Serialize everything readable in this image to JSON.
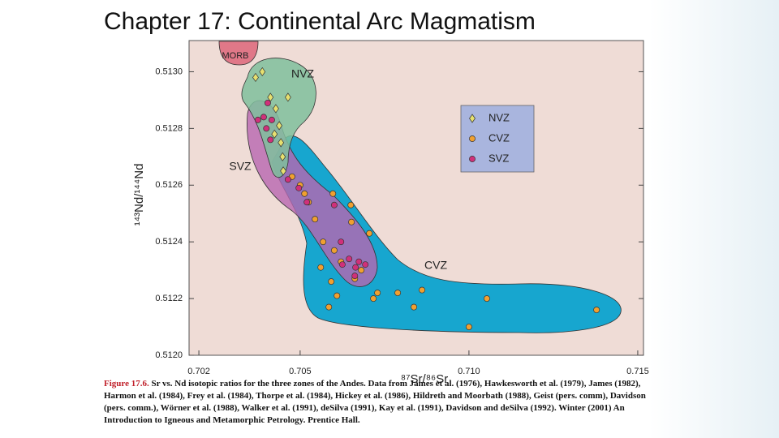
{
  "slide_title": "Chapter 17: Continental Arc Magmatism",
  "chart_data": {
    "type": "scatter",
    "xlabel": "⁸⁷Sr/⁸⁶Sr",
    "ylabel": "¹⁴³Nd/¹⁴⁴Nd",
    "xlim": [
      0.70171,
      0.71517
    ],
    "ylim": [
      0.512,
      0.51311
    ],
    "xticks": [
      0.702,
      0.705,
      {
        "value": 0.71,
        "label": "0.710"
      },
      0.715
    ],
    "yticks": [
      {
        "value": 0.512,
        "label": "0.5120"
      },
      0.5122,
      0.5124,
      0.5126,
      0.5128,
      {
        "value": 0.513,
        "label": "0.5130"
      }
    ],
    "legend": "upper right",
    "annotations": [
      "MORB",
      "NVZ",
      "SVZ",
      "CVZ"
    ],
    "series": [
      {
        "name": "NVZ",
        "color": "#e6e070",
        "marker": "diamond",
        "x": [
          0.70368,
          0.70388,
          0.70464,
          0.70412,
          0.70428,
          0.70438,
          0.70424,
          0.70443,
          0.70448,
          0.7045
        ],
        "values": [
          0.51298,
          0.513,
          0.51291,
          0.51291,
          0.51287,
          0.51281,
          0.51278,
          0.51275,
          0.5127,
          0.51265
        ]
      },
      {
        "name": "CVZ",
        "color": "#f0a030",
        "marker": "circle",
        "x": [
          0.70476,
          0.70513,
          0.70597,
          0.70525,
          0.7065,
          0.70544,
          0.70652,
          0.70705,
          0.70568,
          0.70601,
          0.70621,
          0.70561,
          0.70681,
          0.70592,
          0.70662,
          0.70729,
          0.70609,
          0.70789,
          0.70861,
          0.70585,
          0.70717,
          0.70837,
          0.71053,
          0.71378,
          0.71,
          0.705
        ],
        "values": [
          0.51263,
          0.51257,
          0.51257,
          0.51254,
          0.51253,
          0.51248,
          0.51247,
          0.51243,
          0.5124,
          0.51237,
          0.51233,
          0.51231,
          0.5123,
          0.51226,
          0.51227,
          0.51222,
          0.51221,
          0.51222,
          0.51223,
          0.51217,
          0.5122,
          0.51217,
          0.5122,
          0.51216,
          0.5121,
          0.5126
        ]
      },
      {
        "name": "SVZ",
        "color": "#d0307a",
        "marker": "circle",
        "x": [
          0.70404,
          0.70392,
          0.70375,
          0.70416,
          0.704,
          0.70412,
          0.70464,
          0.70496,
          0.7052,
          0.70601,
          0.70621,
          0.70645,
          0.70674,
          0.70625,
          0.70664,
          0.70693,
          0.70662
        ],
        "values": [
          0.51289,
          0.51284,
          0.51283,
          0.51283,
          0.5128,
          0.51276,
          0.51262,
          0.51259,
          0.51254,
          0.51253,
          0.5124,
          0.51234,
          0.51233,
          0.51232,
          0.51231,
          0.51232,
          0.51228
        ]
      }
    ]
  },
  "caption": {
    "label": "Figure 17.6.",
    "text": "Sr vs. Nd isotopic ratios for the three zones of the Andes. Data from James et al. (1976), Hawkesworth et al. (1979), James (1982), Harmon et al. (1984), Frey et al. (1984), Thorpe et al. (1984), Hickey et al. (1986), Hildreth and Moorbath (1988), Geist (pers. comm), Davidson (pers. comm.), Wörner et al. (1988), Walker et al. (1991), deSilva (1991), Kay et al. (1991), Davidson and deSilva (1992). Winter (2001) An Introduction to Igneous and Metamorphic Petrology. Prentice Hall."
  }
}
